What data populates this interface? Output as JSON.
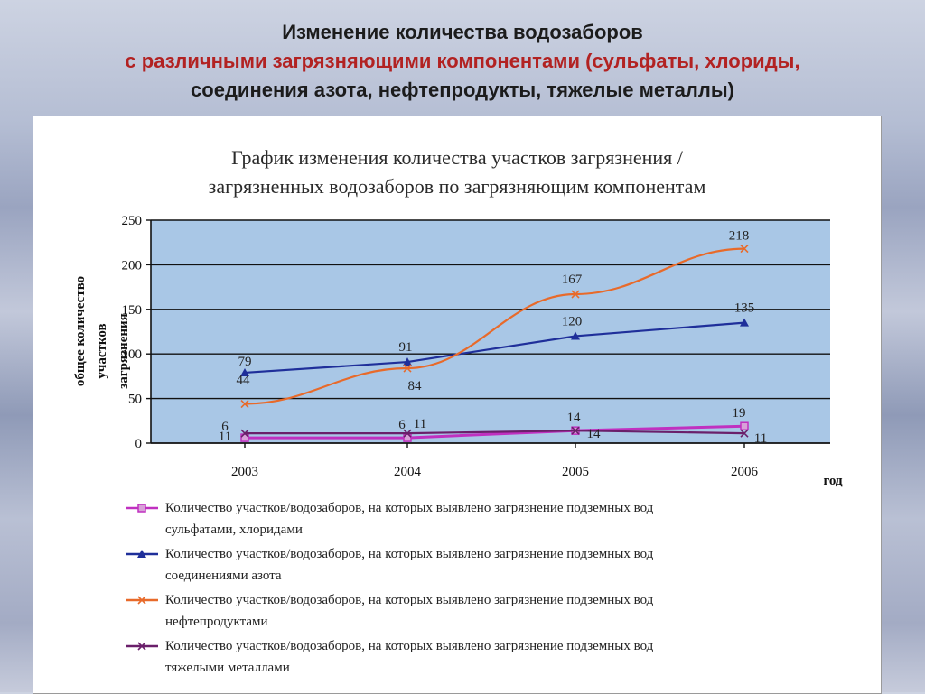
{
  "slide": {
    "title_line1": "Изменение количества водозаборов",
    "title_line2": "с различными загрязняющими компонентами (сульфаты, хлориды,",
    "title_line3": "соединения азота, нефтепродукты, тяжелые металлы)"
  },
  "chart_data": {
    "type": "line",
    "title_line1": "График изменения количества участков загрязнения /",
    "title_line2": "загрязненных водозаборов по загрязняющим компонентам",
    "xlabel": "год",
    "ylabel_line1": "общее количество",
    "ylabel_line2": "участков",
    "ylabel_line3": "загрязнения",
    "x": [
      "2003",
      "2004",
      "2005",
      "2006"
    ],
    "ylim": [
      0,
      250
    ],
    "yticks": [
      "0",
      "50",
      "100",
      "150",
      "200",
      "250"
    ],
    "grid": true,
    "plot_background": "#a9c7e6",
    "series": [
      {
        "legend_line1": "Количество участков/водозаборов, на которых выявлено загрязнение подземных вод",
        "legend_line2": "сульфатами, хлоридами",
        "values": [
          6,
          6,
          14,
          19
        ],
        "labels": [
          "6",
          "6",
          "14",
          "19"
        ],
        "color": "#c030c0",
        "marker": "square"
      },
      {
        "legend_line1": "Количество участков/водозаборов, на которых выявлено загрязнение подземных вод",
        "legend_line2": "соединениями азота",
        "values": [
          79,
          91,
          120,
          135
        ],
        "labels": [
          "79",
          "91",
          "120",
          "135"
        ],
        "color": "#1f2f9a",
        "marker": "triangle"
      },
      {
        "legend_line1": "Количество участков/водозаборов, на которых выявлено загрязнение подземных вод",
        "legend_line2": "нефтепродуктами",
        "values": [
          44,
          84,
          167,
          218
        ],
        "labels": [
          "44",
          "84",
          "167",
          "218"
        ],
        "color": "#e86a2a",
        "marker": "x"
      },
      {
        "legend_line1": "Количество участков/водозаборов, на которых выявлено загрязнение подземных вод",
        "legend_line2": "тяжелыми металлами",
        "values": [
          11,
          11,
          14,
          11
        ],
        "labels": [
          "11",
          "11",
          "14",
          "11"
        ],
        "color": "#6a1f6a",
        "marker": "x"
      }
    ]
  }
}
